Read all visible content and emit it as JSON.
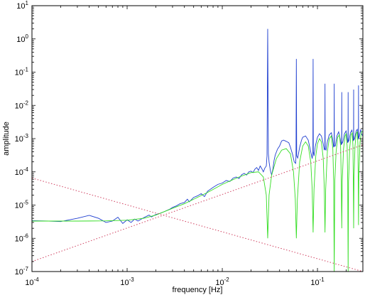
{
  "chart_data": {
    "type": "line",
    "title": "",
    "xlabel": "frequency [Hz]",
    "ylabel": "amplitude",
    "xscale": "log",
    "yscale": "log",
    "xlim": [
      0.0001,
      0.3
    ],
    "ylim": [
      1e-07,
      10
    ],
    "grid": false,
    "legend": "none",
    "x_ticks": [
      {
        "value": 0.0001,
        "base": "10",
        "exp": "-4"
      },
      {
        "value": 0.001,
        "base": "10",
        "exp": "-3"
      },
      {
        "value": 0.01,
        "base": "10",
        "exp": "-2"
      },
      {
        "value": 0.1,
        "base": "10",
        "exp": "-1"
      }
    ],
    "y_ticks": [
      {
        "value": 1e-07,
        "base": "10",
        "exp": "-7"
      },
      {
        "value": 1e-06,
        "base": "10",
        "exp": "-6"
      },
      {
        "value": 1e-05,
        "base": "10",
        "exp": "-5"
      },
      {
        "value": 0.0001,
        "base": "10",
        "exp": "-4"
      },
      {
        "value": 0.001,
        "base": "10",
        "exp": "-3"
      },
      {
        "value": 0.01,
        "base": "10",
        "exp": "-2"
      },
      {
        "value": 0.1,
        "base": "10",
        "exp": "-1"
      },
      {
        "value": 1,
        "base": "10",
        "exp": "0"
      },
      {
        "value": 10,
        "base": "10",
        "exp": "1"
      }
    ],
    "series": [
      {
        "color": "#1f3fd0",
        "style": "solid",
        "points": [
          [
            0.0001,
            3.4e-06
          ],
          [
            0.00015,
            3.3e-06
          ],
          [
            0.0002,
            3.2e-06
          ],
          [
            0.0003,
            4e-06
          ],
          [
            0.0004,
            4.9e-06
          ],
          [
            0.0005,
            4e-06
          ],
          [
            0.0006,
            3e-06
          ],
          [
            0.0007,
            3.3e-06
          ],
          [
            0.0008,
            4.3e-06
          ],
          [
            0.0009,
            2.8e-06
          ],
          [
            0.001,
            3.6e-06
          ],
          [
            0.0011,
            3e-06
          ],
          [
            0.0012,
            3.8e-06
          ],
          [
            0.0013,
            3.3e-06
          ],
          [
            0.0015,
            4.2e-06
          ],
          [
            0.0017,
            5e-06
          ],
          [
            0.0018,
            4.4e-06
          ],
          [
            0.002,
            5.2e-06
          ],
          [
            0.0022,
            5.6e-06
          ],
          [
            0.0025,
            6.5e-06
          ],
          [
            0.0028,
            7.5e-06
          ],
          [
            0.003,
            8.5e-06
          ],
          [
            0.0033,
            9.5e-06
          ],
          [
            0.0036,
            1.1e-05
          ],
          [
            0.004,
            1.2e-05
          ],
          [
            0.0043,
            1.5e-05
          ],
          [
            0.0045,
            1.25e-05
          ],
          [
            0.005,
            1.7e-05
          ],
          [
            0.0055,
            1.9e-05
          ],
          [
            0.006,
            2.2e-05
          ],
          [
            0.0065,
            1.8e-05
          ],
          [
            0.007,
            2.6e-05
          ],
          [
            0.0075,
            3e-05
          ],
          [
            0.008,
            3.4e-05
          ],
          [
            0.009,
            4.2e-05
          ],
          [
            0.01,
            4.6e-05
          ],
          [
            0.011,
            5.5e-05
          ],
          [
            0.012,
            5.1e-05
          ],
          [
            0.013,
            6.5e-05
          ],
          [
            0.014,
            7e-05
          ],
          [
            0.015,
            6.3e-05
          ],
          [
            0.016,
            8.2e-05
          ],
          [
            0.017,
            9e-05
          ],
          [
            0.018,
            8e-05
          ],
          [
            0.019,
            0.0001
          ],
          [
            0.02,
            0.000105
          ],
          [
            0.021,
            9.5e-05
          ],
          [
            0.022,
            0.00012
          ],
          [
            0.023,
            0.000135
          ],
          [
            0.024,
            0.00011
          ],
          [
            0.025,
            0.00015
          ],
          [
            0.026,
            0.000125
          ],
          [
            0.027,
            0.0001
          ],
          [
            0.028,
            0.00013
          ],
          [
            0.029,
            0.00015
          ],
          [
            0.0295,
            0.0003
          ],
          [
            0.03,
            2.0
          ],
          [
            0.0305,
            0.00035
          ],
          [
            0.031,
            0.0002
          ],
          [
            0.032,
            0.00011
          ],
          [
            0.033,
            8e-05
          ],
          [
            0.034,
            0.00012
          ],
          [
            0.035,
            0.00022
          ],
          [
            0.036,
            0.00032
          ],
          [
            0.038,
            0.00048
          ],
          [
            0.04,
            0.0006
          ],
          [
            0.042,
            0.00085
          ],
          [
            0.044,
            0.0009
          ],
          [
            0.046,
            0.00085
          ],
          [
            0.048,
            0.0008
          ],
          [
            0.05,
            0.00075
          ],
          [
            0.052,
            0.00055
          ],
          [
            0.055,
            0.00032
          ],
          [
            0.057,
            0.0002
          ],
          [
            0.059,
            0.00018
          ],
          [
            0.0595,
            0.0003
          ],
          [
            0.06,
            0.25
          ],
          [
            0.0605,
            0.0003
          ],
          [
            0.062,
            0.00026
          ],
          [
            0.065,
            0.00055
          ],
          [
            0.068,
            0.0009
          ],
          [
            0.07,
            0.0011
          ],
          [
            0.075,
            0.0012
          ],
          [
            0.08,
            0.0009
          ],
          [
            0.085,
            0.0004
          ],
          [
            0.088,
            0.00025
          ],
          [
            0.0895,
            0.0004
          ],
          [
            0.09,
            0.25
          ],
          [
            0.0905,
            0.0004
          ],
          [
            0.092,
            0.0003
          ],
          [
            0.095,
            0.0006
          ],
          [
            0.1,
            0.0011
          ],
          [
            0.105,
            0.0014
          ],
          [
            0.11,
            0.0012
          ],
          [
            0.115,
            0.0007
          ],
          [
            0.118,
            0.00045
          ],
          [
            0.1195,
            0.0005
          ],
          [
            0.12,
            0.045
          ],
          [
            0.1205,
            0.0005
          ],
          [
            0.123,
            0.00045
          ],
          [
            0.127,
            0.0008
          ],
          [
            0.133,
            0.0013
          ],
          [
            0.14,
            0.0015
          ],
          [
            0.145,
            0.0009
          ],
          [
            0.148,
            0.00055
          ],
          [
            0.1495,
            0.0006
          ],
          [
            0.15,
            0.045
          ],
          [
            0.1505,
            0.0006
          ],
          [
            0.154,
            0.0006
          ],
          [
            0.16,
            0.0012
          ],
          [
            0.167,
            0.0016
          ],
          [
            0.173,
            0.001
          ],
          [
            0.178,
            0.00065
          ],
          [
            0.1795,
            0.0007
          ],
          [
            0.18,
            0.025
          ],
          [
            0.1805,
            0.0007
          ],
          [
            0.185,
            0.0008
          ],
          [
            0.192,
            0.0014
          ],
          [
            0.2,
            0.0017
          ],
          [
            0.205,
            0.001
          ],
          [
            0.208,
            0.00075
          ],
          [
            0.2095,
            0.0008
          ],
          [
            0.21,
            0.025
          ],
          [
            0.2105,
            0.0008
          ],
          [
            0.215,
            0.0009
          ],
          [
            0.222,
            0.0015
          ],
          [
            0.23,
            0.0018
          ],
          [
            0.236,
            0.0011
          ],
          [
            0.239,
            0.00085
          ],
          [
            0.2395,
            0.0009
          ],
          [
            0.24,
            0.03
          ],
          [
            0.2405,
            0.0009
          ],
          [
            0.246,
            0.001
          ],
          [
            0.255,
            0.0017
          ],
          [
            0.262,
            0.0019
          ],
          [
            0.267,
            0.0012
          ],
          [
            0.269,
            0.00095
          ],
          [
            0.2695,
            0.001
          ],
          [
            0.27,
            0.04
          ],
          [
            0.2705,
            0.001
          ],
          [
            0.276,
            0.0012
          ],
          [
            0.285,
            0.0019
          ],
          [
            0.29,
            0.0014
          ],
          [
            0.2995,
            0.0012
          ],
          [
            0.3,
            0.3
          ]
        ]
      },
      {
        "color": "#33dd22",
        "style": "solid",
        "points": [
          [
            0.0001,
            3.3e-06
          ],
          [
            0.0003,
            3.3e-06
          ],
          [
            0.0006,
            3.35e-06
          ],
          [
            0.001,
            3.5e-06
          ],
          [
            0.0015,
            4e-06
          ],
          [
            0.002,
            5e-06
          ],
          [
            0.003,
            8e-06
          ],
          [
            0.004,
            1.1e-05
          ],
          [
            0.005,
            1.5e-05
          ],
          [
            0.007,
            2.4e-05
          ],
          [
            0.01,
            4.2e-05
          ],
          [
            0.015,
            7e-05
          ],
          [
            0.02,
            9.5e-05
          ],
          [
            0.024,
            0.0001
          ],
          [
            0.027,
            7e-05
          ],
          [
            0.029,
            2e-05
          ],
          [
            0.03,
            1e-06
          ],
          [
            0.031,
            2e-05
          ],
          [
            0.033,
            8e-05
          ],
          [
            0.037,
            0.00025
          ],
          [
            0.042,
            0.00045
          ],
          [
            0.047,
            0.0005
          ],
          [
            0.052,
            0.00035
          ],
          [
            0.056,
            0.0001
          ],
          [
            0.0585,
            1.5e-05
          ],
          [
            0.06,
            1e-06
          ],
          [
            0.0615,
            1.5e-05
          ],
          [
            0.065,
            0.0002
          ],
          [
            0.07,
            0.0006
          ],
          [
            0.075,
            0.0008
          ],
          [
            0.08,
            0.0006
          ],
          [
            0.085,
            0.0002
          ],
          [
            0.088,
            3e-05
          ],
          [
            0.09,
            1.5e-06
          ],
          [
            0.092,
            3e-05
          ],
          [
            0.096,
            0.0003
          ],
          [
            0.1,
            0.0007
          ],
          [
            0.105,
            0.001
          ],
          [
            0.11,
            0.0008
          ],
          [
            0.115,
            0.00025
          ],
          [
            0.118,
            3e-05
          ],
          [
            0.12,
            1.5e-06
          ],
          [
            0.122,
            3e-05
          ],
          [
            0.127,
            0.0004
          ],
          [
            0.133,
            0.001
          ],
          [
            0.14,
            0.0012
          ],
          [
            0.145,
            0.0005
          ],
          [
            0.148,
            5e-05
          ],
          [
            0.15,
            1e-07
          ],
          [
            0.152,
            5e-05
          ],
          [
            0.157,
            0.0004
          ],
          [
            0.163,
            0.0011
          ],
          [
            0.17,
            0.0013
          ],
          [
            0.175,
            0.0006
          ],
          [
            0.178,
            5e-05
          ],
          [
            0.18,
            2e-06
          ],
          [
            0.182,
            5e-05
          ],
          [
            0.188,
            0.0005
          ],
          [
            0.195,
            0.0012
          ],
          [
            0.2,
            0.0014
          ],
          [
            0.205,
            0.0006
          ],
          [
            0.208,
            5e-05
          ],
          [
            0.21,
            1e-07
          ],
          [
            0.212,
            5e-05
          ],
          [
            0.218,
            0.0005
          ],
          [
            0.225,
            0.0013
          ],
          [
            0.232,
            0.0015
          ],
          [
            0.236,
            0.0006
          ],
          [
            0.238,
            6e-05
          ],
          [
            0.24,
            2e-06
          ],
          [
            0.242,
            6e-05
          ],
          [
            0.248,
            0.0006
          ],
          [
            0.255,
            0.0014
          ],
          [
            0.262,
            0.0016
          ],
          [
            0.266,
            0.0007
          ],
          [
            0.268,
            7e-05
          ],
          [
            0.27,
            2.5e-06
          ],
          [
            0.272,
            7e-05
          ],
          [
            0.28,
            0.0008
          ],
          [
            0.29,
            0.0016
          ],
          [
            0.3,
            0.0017
          ]
        ]
      },
      {
        "color": "#d04060",
        "style": "dotted",
        "points": [
          [
            0.0001,
            6.5e-05
          ],
          [
            0.3,
            1e-07
          ]
        ]
      },
      {
        "color": "#d04060",
        "style": "dotted",
        "points": [
          [
            0.0001,
            2e-07
          ],
          [
            0.3,
            0.00065
          ]
        ]
      }
    ]
  }
}
